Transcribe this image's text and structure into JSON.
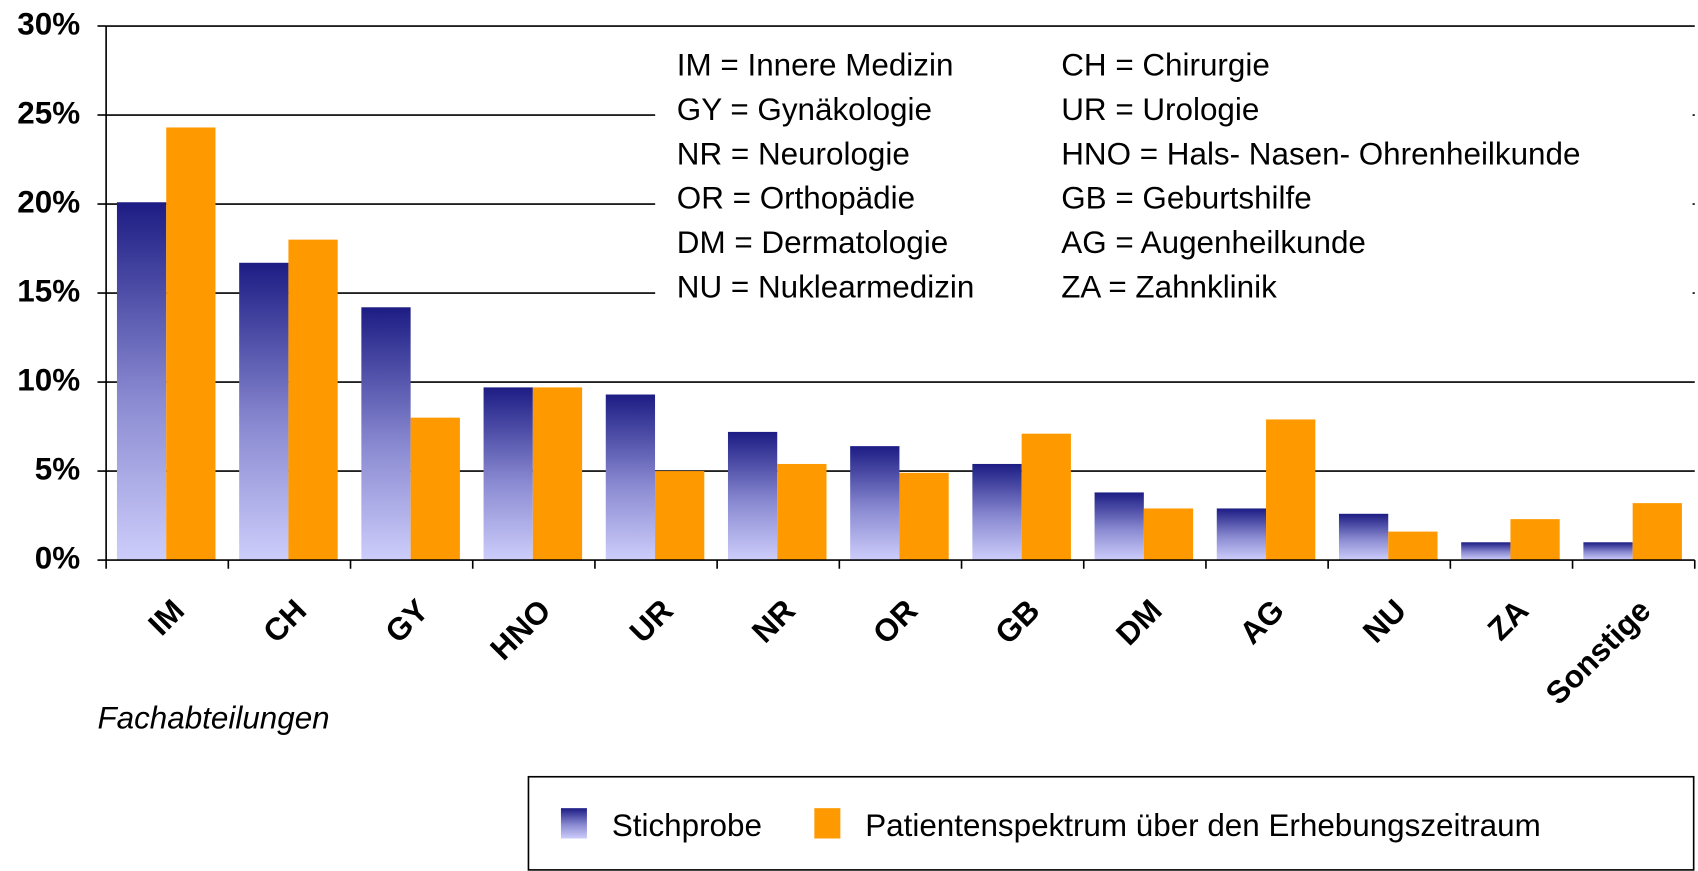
{
  "chart_data": {
    "type": "bar",
    "x_label": "Fachabteilungen",
    "categories": [
      "IM",
      "CH",
      "GY",
      "HNO",
      "UR",
      "NR",
      "OR",
      "GB",
      "DM",
      "AG",
      "NU",
      "ZA",
      "Sonstige"
    ],
    "series": [
      {
        "name": "Stichprobe",
        "color": "#1c1c84",
        "values": [
          20.1,
          16.7,
          14.2,
          9.7,
          9.3,
          7.2,
          6.4,
          5.4,
          3.8,
          2.9,
          2.6,
          1.0,
          1.0
        ]
      },
      {
        "name": "Patientenspektrum über den Erhebungszeitraum",
        "color": "#ff9900",
        "values": [
          24.3,
          18.0,
          8.0,
          9.7,
          5.0,
          5.4,
          4.9,
          7.1,
          2.9,
          7.9,
          1.6,
          2.3,
          3.2
        ]
      }
    ],
    "ylim": [
      0,
      30
    ],
    "yticks": [
      {
        "value": 0,
        "label": "0%"
      },
      {
        "value": 5,
        "label": "5%"
      },
      {
        "value": 10,
        "label": "10%"
      },
      {
        "value": 15,
        "label": "15%"
      },
      {
        "value": 20,
        "label": "20%"
      },
      {
        "value": 25,
        "label": "25%"
      },
      {
        "value": 30,
        "label": "30%"
      }
    ],
    "grid": true,
    "legend": "bottom",
    "annotation_columns": [
      [
        "IM = Innere Medizin",
        "GY = Gynäkologie",
        "NR = Neurologie",
        "OR = Orthopädie",
        "DM = Dermatologie",
        "NU = Nuklearmedizin"
      ],
      [
        "CH = Chirurgie",
        "UR = Urologie",
        "HNO = Hals- Nasen- Ohrenheilkunde",
        "GB = Geburtshilfe",
        "AG = Augenheilkunde",
        "ZA = Zahnklinik"
      ]
    ]
  }
}
